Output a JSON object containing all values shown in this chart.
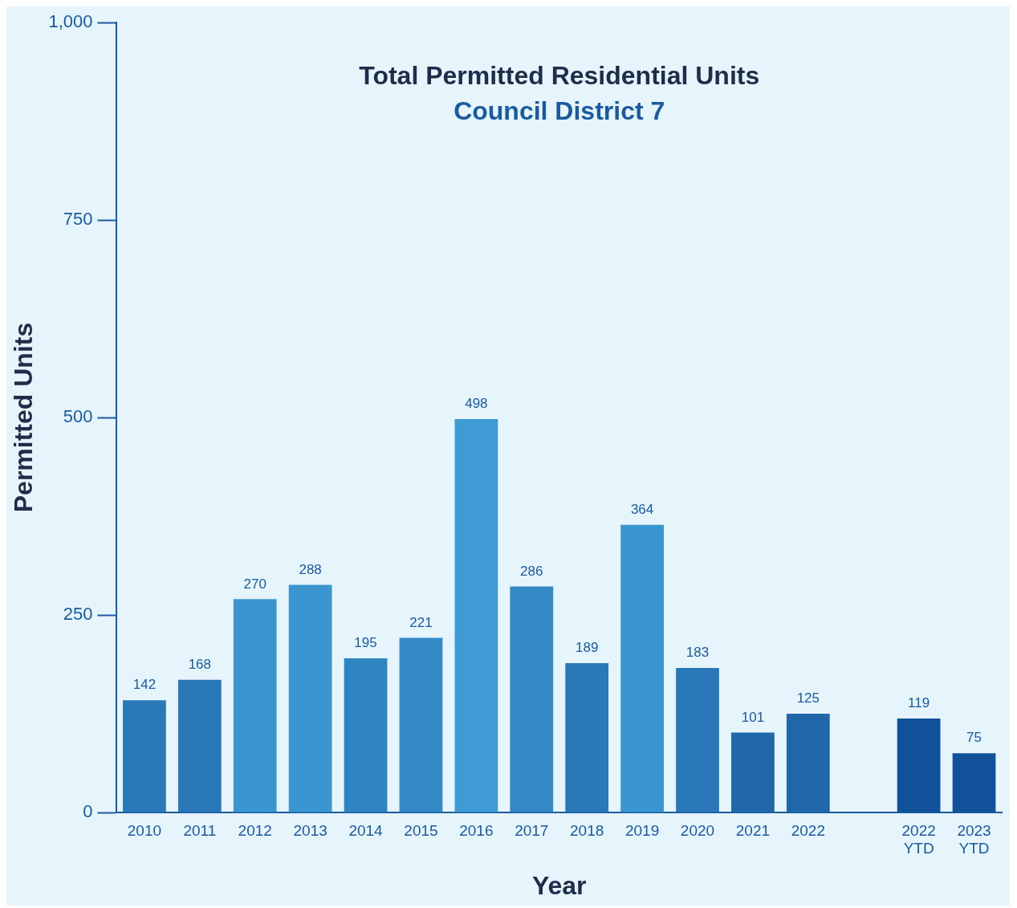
{
  "chart_data": {
    "type": "bar",
    "title": "Total Permitted Residential Units",
    "subtitle": "Council District 7",
    "xlabel": "Year",
    "ylabel": "Permitted Units",
    "categories": [
      "2010",
      "2011",
      "2012",
      "2013",
      "2014",
      "2015",
      "2016",
      "2017",
      "2018",
      "2019",
      "2020",
      "2021",
      "2022",
      null,
      "2022 YTD",
      "2023 YTD"
    ],
    "values": [
      142,
      168,
      270,
      288,
      195,
      221,
      498,
      286,
      189,
      364,
      183,
      101,
      125,
      null,
      119,
      75
    ],
    "colors": [
      "#2a78b8",
      "#2a78b8",
      "#3a95d0",
      "#3a95d0",
      "#2f84c2",
      "#3389c6",
      "#3f9bd4",
      "#3389c6",
      "#2a78b8",
      "#3a95d0",
      "#2a78b8",
      "#1f67a8",
      "#1f67a8",
      "#1f67a8",
      "#11519a",
      "#11519a"
    ],
    "ylim": [
      0,
      1000
    ],
    "yticks": [
      0,
      250,
      500,
      750,
      {
        "value": 1000,
        "label": "1,000"
      }
    ],
    "grid": false,
    "legend": false,
    "data_labels": true
  }
}
